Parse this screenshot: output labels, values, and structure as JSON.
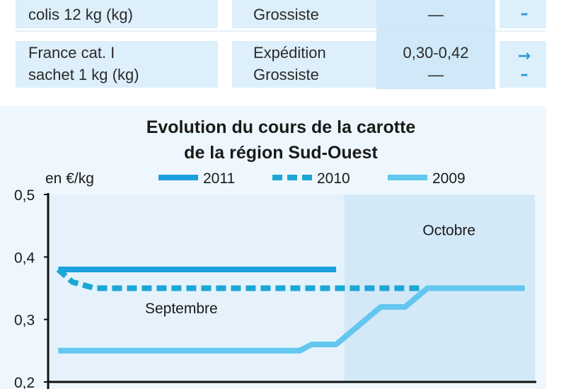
{
  "table": {
    "rows": [
      {
        "product_line1": "",
        "product_line2": "colis 12 kg (kg)",
        "stage_line1": "",
        "stage_line2": "Grossiste",
        "price_line1": "",
        "price_line2": "—",
        "trend_line1": "",
        "trend_line2": "–"
      },
      {
        "product_line1": "France cat. I",
        "product_line2": "sachet 1 kg (kg)",
        "stage_line1": "Expédition",
        "stage_line2": "Grossiste",
        "price_line1": "0,30-0,42",
        "price_line2": "—",
        "trend_line1": "→",
        "trend_line2": "–"
      }
    ]
  },
  "chart_data": {
    "type": "line",
    "title_line1": "Evolution du cours de la carotte",
    "title_line2": "de la région Sud-Ouest",
    "ylabel": "en €/kg",
    "ylim": [
      0.2,
      0.5
    ],
    "yticks": [
      "0,5",
      "0,4",
      "0,3",
      "0,2"
    ],
    "ytick_values": [
      0.5,
      0.4,
      0.3,
      0.2
    ],
    "x_range": [
      0,
      24
    ],
    "periods": [
      {
        "label": "Septembre",
        "start": 0,
        "end": 14.6
      },
      {
        "label": "Octobre",
        "start": 14.6,
        "end": 24
      }
    ],
    "legend": [
      "2011",
      "2010",
      "2009"
    ],
    "series": [
      {
        "name": "2011",
        "color": "#1aa0dc",
        "style": "solid",
        "x": [
          0.5,
          14.2
        ],
        "y": [
          0.38,
          0.38
        ]
      },
      {
        "name": "2010",
        "color": "#1ba7d6",
        "style": "dashed",
        "x": [
          0.5,
          1.2,
          2.3,
          3.5,
          18.5
        ],
        "y": [
          0.38,
          0.36,
          0.35,
          0.35,
          0.35
        ]
      },
      {
        "name": "2009",
        "color": "#63c7ee",
        "style": "solid",
        "x": [
          0.5,
          12.4,
          13.0,
          14.2,
          16.4,
          17.6,
          18.7,
          23.5
        ],
        "y": [
          0.25,
          0.25,
          0.26,
          0.26,
          0.32,
          0.32,
          0.35,
          0.35
        ]
      }
    ]
  }
}
